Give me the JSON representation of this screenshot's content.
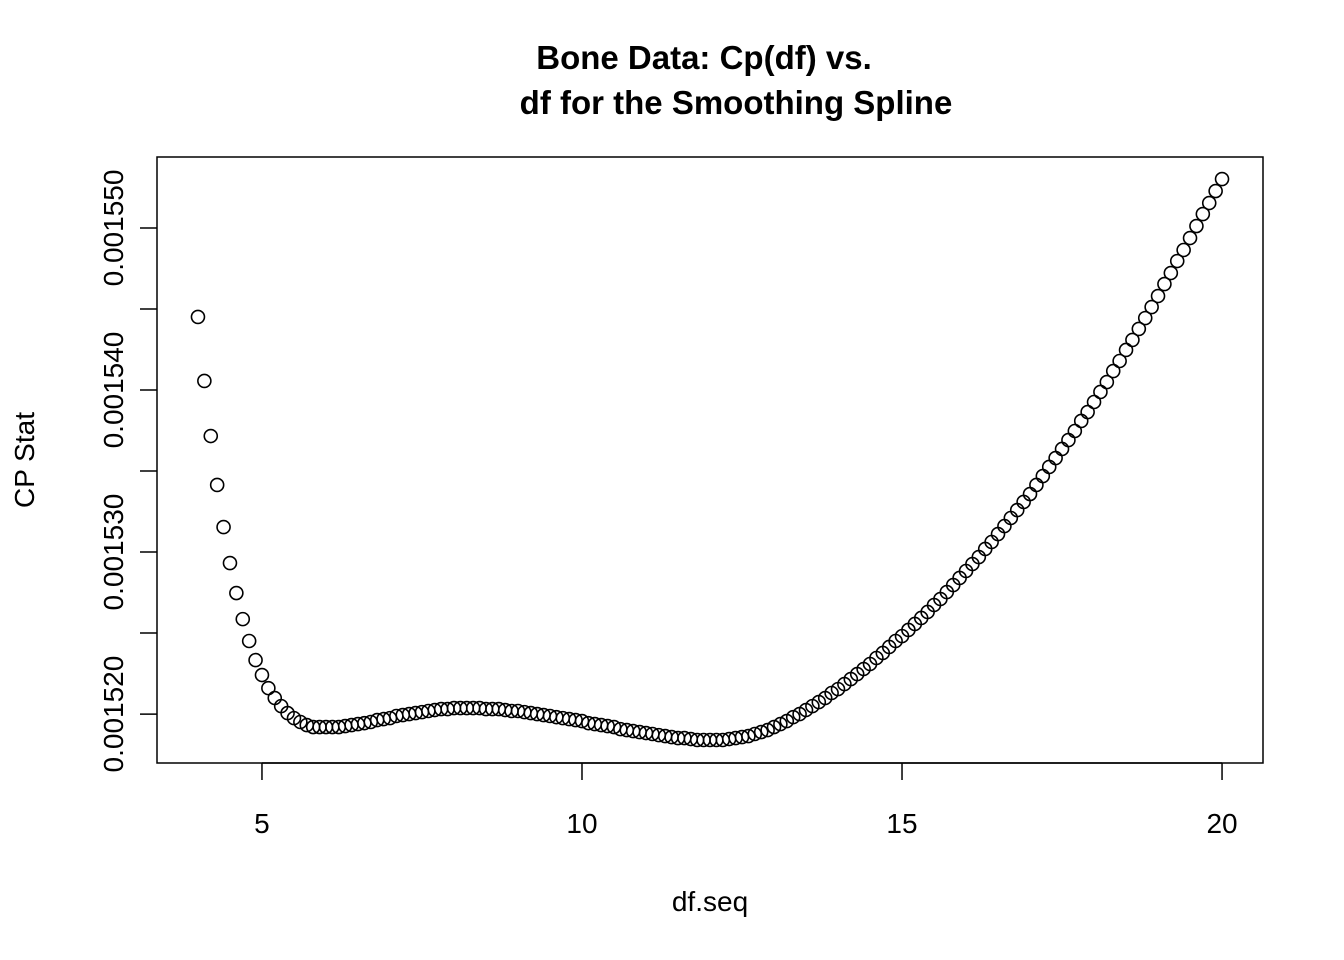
{
  "chart_data": {
    "type": "scatter",
    "title": [
      "Bone Data: Cp(df) vs.",
      "df for the Smoothing Spline"
    ],
    "x_label": "df.seq",
    "y_label": "CP Stat",
    "x": [
      4.0,
      4.1,
      4.2,
      4.3,
      4.4,
      4.5,
      4.6,
      4.7,
      4.8,
      4.9,
      5.0,
      5.1,
      5.2,
      5.3,
      5.4,
      5.5,
      5.6,
      5.7,
      5.8,
      5.9,
      6.0,
      6.1,
      6.2,
      6.3,
      6.4,
      6.5,
      6.6,
      6.7,
      6.8,
      6.9,
      7.0,
      7.1,
      7.2,
      7.3,
      7.4,
      7.5,
      7.6,
      7.7,
      7.8,
      7.9,
      8.0,
      8.1,
      8.2,
      8.3,
      8.4,
      8.5,
      8.6,
      8.7,
      8.8,
      8.9,
      9.0,
      9.1,
      9.2,
      9.3,
      9.4,
      9.5,
      9.6,
      9.7,
      9.8,
      9.9,
      10.0,
      10.1,
      10.2,
      10.3,
      10.4,
      10.5,
      10.6,
      10.7,
      10.8,
      10.9,
      11.0,
      11.1,
      11.2,
      11.3,
      11.4,
      11.5,
      11.6,
      11.7,
      11.8,
      11.9,
      12.0,
      12.1,
      12.2,
      12.3,
      12.4,
      12.5,
      12.6,
      12.7,
      12.8,
      12.9,
      13.0,
      13.1,
      13.2,
      13.3,
      13.4,
      13.5,
      13.6,
      13.7,
      13.8,
      13.9,
      14.0,
      14.1,
      14.2,
      14.3,
      14.4,
      14.5,
      14.6,
      14.7,
      14.8,
      14.9,
      15.0,
      15.1,
      15.2,
      15.3,
      15.4,
      15.5,
      15.6,
      15.7,
      15.8,
      15.9,
      16.0,
      16.1,
      16.2,
      16.3,
      16.4,
      16.5,
      16.6,
      16.7,
      16.8,
      16.9,
      17.0,
      17.1,
      17.2,
      17.3,
      17.4,
      17.5,
      17.6,
      17.7,
      17.8,
      17.9,
      18.0,
      18.1,
      18.2,
      18.3,
      18.4,
      18.5,
      18.6,
      18.7,
      18.8,
      18.9,
      19.0,
      19.1,
      19.2,
      19.3,
      19.4,
      19.5,
      19.6,
      19.7,
      19.8,
      19.9,
      20.0
    ],
    "values": [
      0.00154451,
      0.00154056,
      0.00153716,
      0.00153414,
      0.00153154,
      0.00152932,
      0.00152747,
      0.00152586,
      0.00152451,
      0.00152333,
      0.00152241,
      0.0015216,
      0.00152099,
      0.00152049,
      0.00152006,
      0.00151975,
      0.00151951,
      0.00151932,
      0.0015192,
      0.0015192,
      0.0015192,
      0.0015192,
      0.0015192,
      0.00151926,
      0.00151932,
      0.00151938,
      0.00151944,
      0.00151951,
      0.00151963,
      0.00151969,
      0.00151975,
      0.00151988,
      0.00151994,
      0.00152,
      0.00152006,
      0.00152012,
      0.00152019,
      0.00152025,
      0.00152031,
      0.00152031,
      0.00152037,
      0.00152037,
      0.00152037,
      0.00152037,
      0.00152037,
      0.00152031,
      0.00152031,
      0.00152031,
      0.00152025,
      0.00152019,
      0.00152019,
      0.00152012,
      0.00152006,
      0.00152,
      0.00151994,
      0.00151988,
      0.00151981,
      0.00151975,
      0.00151969,
      0.00151963,
      0.00151957,
      0.00151944,
      0.00151938,
      0.00151932,
      0.00151926,
      0.0015192,
      0.00151907,
      0.00151901,
      0.00151895,
      0.00151889,
      0.00151883,
      0.00151877,
      0.0015187,
      0.00151864,
      0.00151858,
      0.00151852,
      0.00151852,
      0.00151846,
      0.0015184,
      0.0015184,
      0.0015184,
      0.0015184,
      0.0015184,
      0.00151846,
      0.00151852,
      0.00151858,
      0.00151864,
      0.00151877,
      0.00151889,
      0.00151901,
      0.0015192,
      0.00151938,
      0.00151957,
      0.00151981,
      0.00152,
      0.00152025,
      0.00152049,
      0.00152074,
      0.00152099,
      0.0015213,
      0.00152154,
      0.00152185,
      0.00152216,
      0.00152247,
      0.00152278,
      0.00152309,
      0.00152346,
      0.00152377,
      0.00152414,
      0.00152451,
      0.00152481,
      0.00152519,
      0.00152556,
      0.00152593,
      0.0015263,
      0.00152673,
      0.0015271,
      0.00152753,
      0.00152796,
      0.0015284,
      0.00152883,
      0.00152926,
      0.00152969,
      0.00153019,
      0.00153062,
      0.00153111,
      0.0015316,
      0.0015321,
      0.00153259,
      0.00153309,
      0.00153358,
      0.00153414,
      0.00153469,
      0.00153525,
      0.0015358,
      0.00153636,
      0.00153691,
      0.00153747,
      0.00153809,
      0.00153864,
      0.00153926,
      0.00153988,
      0.00154049,
      0.00154117,
      0.00154179,
      0.00154247,
      0.00154309,
      0.00154377,
      0.00154444,
      0.00154512,
      0.0015458,
      0.00154654,
      0.00154722,
      0.00154796,
      0.00154864,
      0.00154938,
      0.00155012,
      0.00155086,
      0.00155154,
      0.00155228,
      0.00155302
    ],
    "color": "#000000",
    "xlim": [
      3.36,
      20.64
    ],
    "xticks": [
      5,
      10,
      15,
      20
    ],
    "ylim": [
      0.00151698,
      0.00155438
    ],
    "yticks": [
      {
        "value": 0.00152,
        "label": "0.001520"
      },
      {
        "value": 0.001525,
        "label": null
      },
      {
        "value": 0.00153,
        "label": "0.001530"
      },
      {
        "value": 0.001535,
        "label": null
      },
      {
        "value": 0.00154,
        "label": "0.001540"
      },
      {
        "value": 0.001545,
        "label": null
      },
      {
        "value": 0.00155,
        "label": "0.001550"
      }
    ]
  }
}
